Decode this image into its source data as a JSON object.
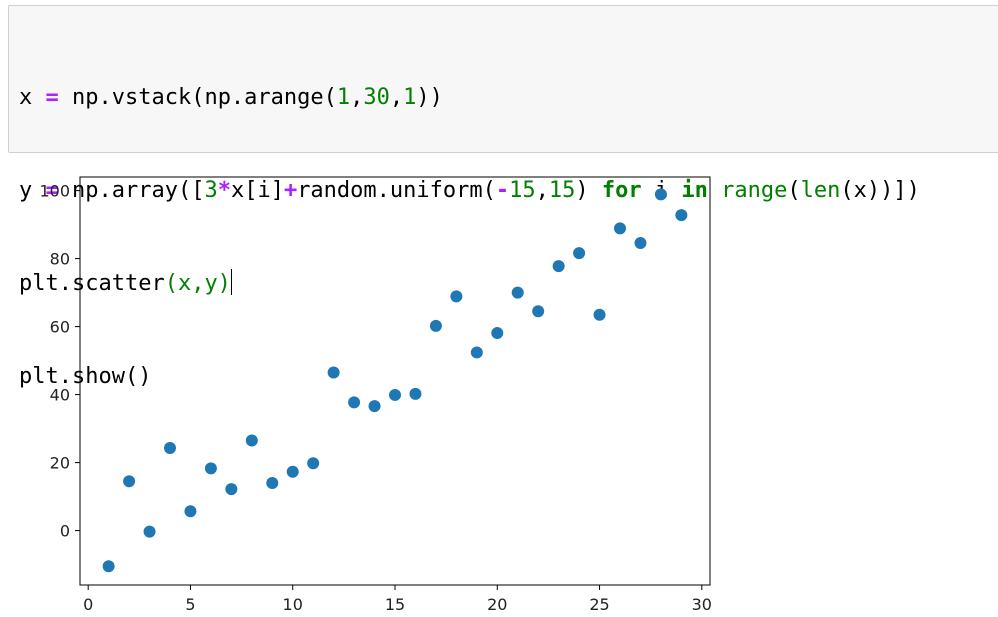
{
  "code": {
    "line1": {
      "a": "x ",
      "b": "=",
      "c": " np.vstack(np.arange(",
      "d": "1",
      "e": ",",
      "f": "30",
      "g": ",",
      "h": "1",
      "i": "))"
    },
    "line2": {
      "a": "y ",
      "b": "=",
      "c": " np.array([",
      "d": "3",
      "e": "*",
      "f": "x[i]",
      "g": "+",
      "h": "random.uniform(",
      "i": "-",
      "j": "15",
      "k": ",",
      "l": "15",
      "m": ") ",
      "n": "for",
      "o": " i ",
      "p": "in",
      "q": " ",
      "r": "range",
      "s": "(",
      "t": "len",
      "u": "(x))])"
    },
    "line3": {
      "a": "plt.scatter",
      "b": "(x,y)"
    },
    "line4": {
      "a": "plt.show()"
    }
  },
  "chart_data": {
    "type": "scatter",
    "title": "",
    "xlabel": "",
    "ylabel": "",
    "xlim": [
      -0.4,
      30.4
    ],
    "ylim": [
      -16,
      104
    ],
    "xticks": [
      0,
      5,
      10,
      15,
      20,
      25,
      30
    ],
    "yticks": [
      0,
      20,
      40,
      60,
      80,
      100
    ],
    "color": "#1f77b4",
    "x": [
      1,
      2,
      3,
      4,
      5,
      6,
      7,
      8,
      9,
      10,
      11,
      12,
      13,
      14,
      15,
      16,
      17,
      18,
      19,
      20,
      21,
      22,
      23,
      24,
      25,
      26,
      27,
      28,
      29
    ],
    "y": [
      -10.5,
      14.5,
      -0.3,
      24.3,
      5.7,
      18.3,
      12.2,
      26.5,
      14.0,
      17.3,
      19.8,
      46.5,
      37.7,
      36.6,
      39.9,
      40.2,
      60.2,
      68.9,
      52.4,
      58.1,
      70.0,
      64.5,
      77.8,
      81.6,
      63.5,
      88.9,
      84.6,
      98.9,
      92.8
    ]
  }
}
